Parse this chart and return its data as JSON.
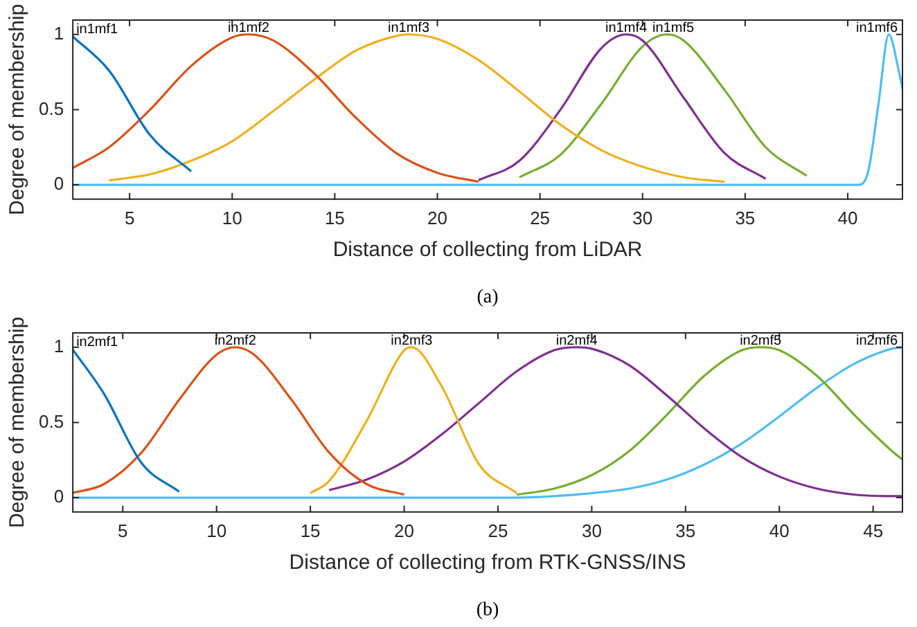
{
  "chart_data": [
    {
      "type": "line",
      "xlabel": "Distance of collecting from LiDAR",
      "ylabel": "Degree of membership",
      "xlim": [
        2.2,
        42.7
      ],
      "xticks": [
        5,
        10,
        15,
        20,
        25,
        30,
        35,
        40
      ],
      "ylim": [
        -0.1,
        1.1
      ],
      "yticks": [
        0,
        0.5,
        1
      ],
      "annotations": [
        "(a)"
      ],
      "series": [
        {
          "name": "in1mf1",
          "color": "#0072bd",
          "x": [
            2.2,
            4,
            6,
            8
          ],
          "values": [
            0.99,
            0.76,
            0.33,
            0.09
          ]
        },
        {
          "name": "in1mf2",
          "color": "#d95319",
          "x": [
            2.2,
            4,
            6,
            8,
            10,
            10.8,
            12,
            14,
            16,
            18,
            20,
            22
          ],
          "values": [
            0.11,
            0.25,
            0.5,
            0.79,
            0.98,
            1,
            0.96,
            0.74,
            0.45,
            0.21,
            0.08,
            0.02
          ]
        },
        {
          "name": "in1mf3",
          "color": "#edb120",
          "x": [
            4,
            6,
            8,
            10,
            12,
            14,
            16,
            18,
            18.6,
            20,
            22,
            24,
            26,
            28,
            30,
            32,
            34
          ],
          "values": [
            0.03,
            0.07,
            0.16,
            0.29,
            0.49,
            0.7,
            0.89,
            0.99,
            1,
            0.97,
            0.83,
            0.62,
            0.4,
            0.23,
            0.12,
            0.05,
            0.02
          ]
        },
        {
          "name": "in1mf4",
          "color": "#7e2f8e",
          "x": [
            22,
            24,
            26,
            28,
            29.2,
            30,
            32,
            34,
            36
          ],
          "values": [
            0.03,
            0.16,
            0.5,
            0.91,
            1,
            0.96,
            0.58,
            0.21,
            0.04
          ]
        },
        {
          "name": "in1mf5",
          "color": "#77ac30",
          "x": [
            24,
            26,
            28,
            30,
            31.2,
            32,
            34,
            36,
            38
          ],
          "values": [
            0.05,
            0.2,
            0.54,
            0.92,
            1,
            0.96,
            0.63,
            0.25,
            0.06
          ]
        },
        {
          "name": "in1mf6",
          "color": "#4dbeee",
          "x": [
            2.2,
            40,
            40.5,
            41,
            41.5,
            42,
            42.5,
            42.7
          ],
          "values": [
            0,
            0,
            0,
            0.09,
            0.54,
            1,
            0.75,
            0.62
          ]
        }
      ]
    },
    {
      "type": "line",
      "xlabel": "Distance of collecting from RTK-GNSS/INS",
      "ylabel": "Degree of membership",
      "xlim": [
        2.3,
        46.6
      ],
      "xticks": [
        5,
        10,
        15,
        20,
        25,
        30,
        35,
        40,
        45
      ],
      "ylim": [
        -0.1,
        1.1
      ],
      "yticks": [
        0,
        0.5,
        1
      ],
      "annotations": [
        "(b)"
      ],
      "series": [
        {
          "name": "in2mf1",
          "color": "#0072bd",
          "x": [
            2.3,
            4,
            6,
            8
          ],
          "values": [
            0.99,
            0.69,
            0.23,
            0.04
          ]
        },
        {
          "name": "in2mf2",
          "color": "#d95319",
          "x": [
            2.3,
            4,
            6,
            8,
            10,
            11,
            12,
            14,
            16,
            18,
            20
          ],
          "values": [
            0.03,
            0.09,
            0.3,
            0.65,
            0.95,
            1,
            0.95,
            0.65,
            0.3,
            0.09,
            0.02
          ]
        },
        {
          "name": "in2mf3",
          "color": "#edb120",
          "x": [
            15,
            16,
            18,
            20,
            20.4,
            22,
            24,
            26
          ],
          "values": [
            0.03,
            0.11,
            0.51,
            0.98,
            1,
            0.74,
            0.22,
            0.03
          ]
        },
        {
          "name": "in2mf4",
          "color": "#7e2f8e",
          "x": [
            16,
            18,
            20,
            22,
            24,
            26,
            28,
            29.2,
            30,
            32,
            34,
            36,
            38,
            40,
            42,
            44,
            46,
            46.6
          ],
          "values": [
            0.05,
            0.12,
            0.24,
            0.42,
            0.63,
            0.84,
            0.98,
            1,
            0.99,
            0.88,
            0.68,
            0.46,
            0.27,
            0.14,
            0.06,
            0.02,
            0.01,
            0.01
          ]
        },
        {
          "name": "in2mf5",
          "color": "#77ac30",
          "x": [
            26,
            28,
            30,
            32,
            34,
            36,
            38,
            39,
            40,
            42,
            44,
            46,
            46.6
          ],
          "values": [
            0.02,
            0.06,
            0.15,
            0.31,
            0.55,
            0.81,
            0.98,
            1,
            0.98,
            0.81,
            0.55,
            0.31,
            0.25
          ]
        },
        {
          "name": "in2mf6",
          "color": "#4dbeee",
          "x": [
            2.3,
            10,
            20,
            24,
            26,
            28,
            30,
            32,
            34,
            36,
            38,
            40,
            42,
            44,
            46,
            46.6
          ],
          "values": [
            0,
            0,
            0,
            0,
            0,
            0.01,
            0.03,
            0.06,
            0.12,
            0.22,
            0.36,
            0.54,
            0.73,
            0.89,
            0.99,
            1
          ]
        }
      ]
    }
  ]
}
